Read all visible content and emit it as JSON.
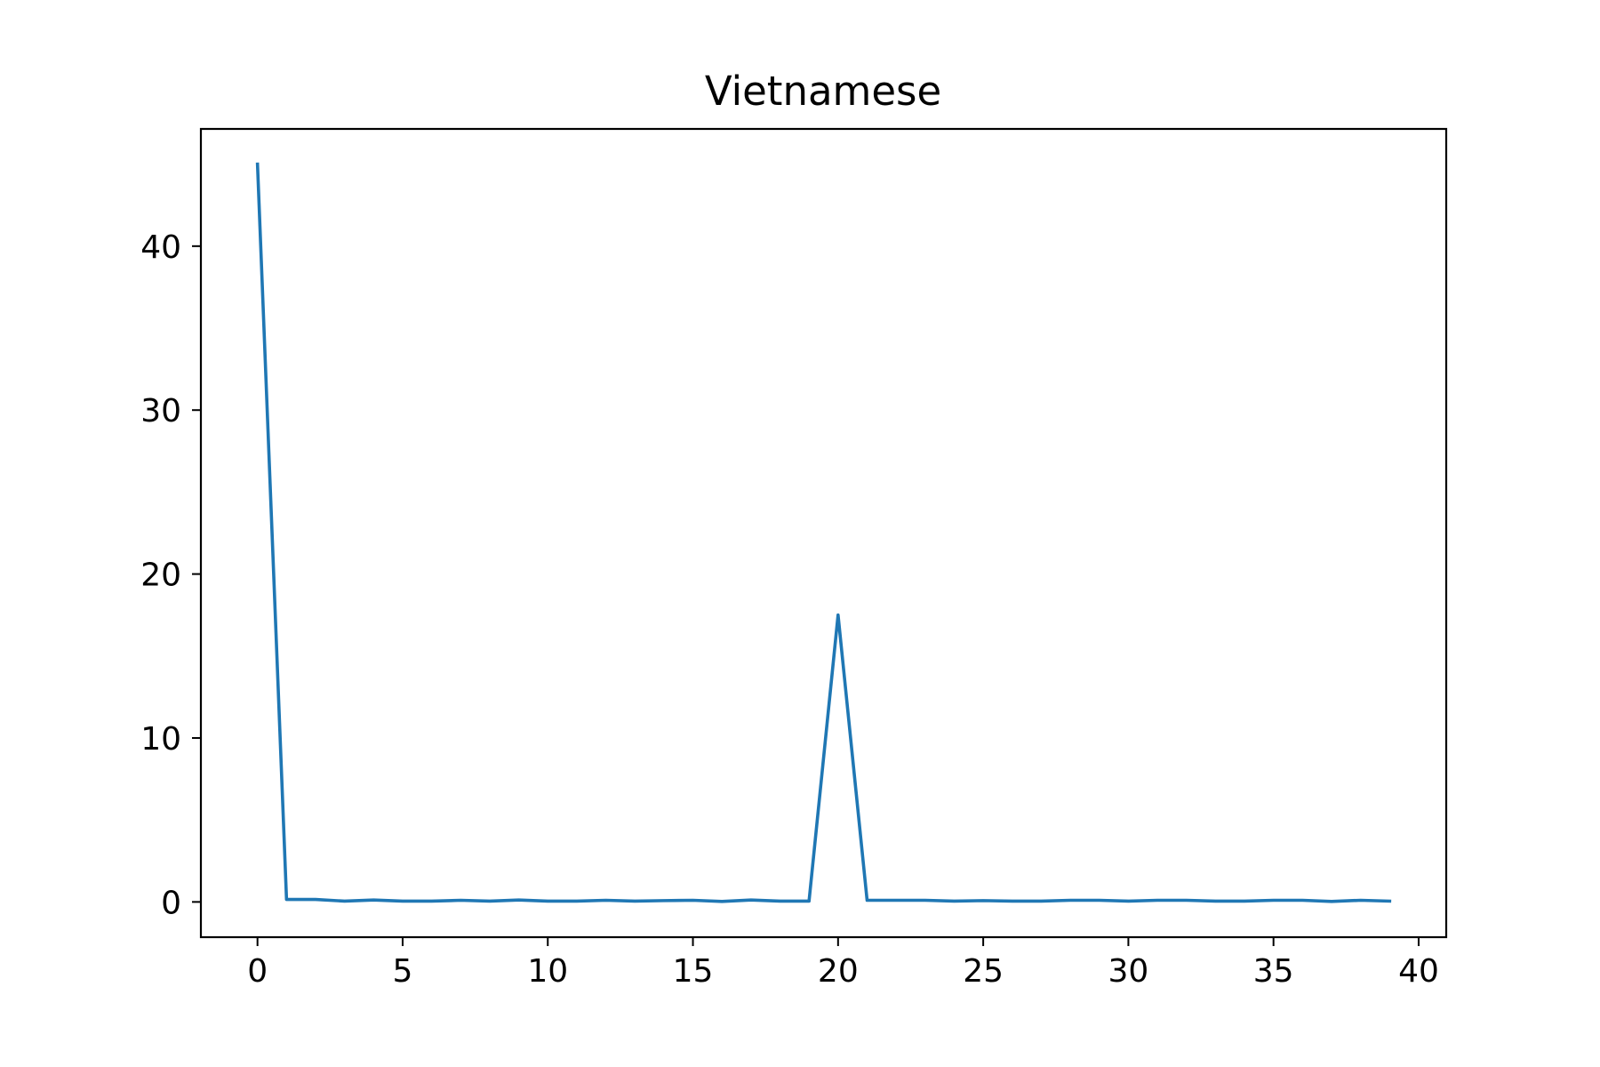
{
  "chart_data": {
    "type": "line",
    "title": "Vietnamese",
    "xlabel": "",
    "ylabel": "",
    "xlim": [
      -1.95,
      40.95
    ],
    "ylim": [
      -2.15,
      47.15
    ],
    "xticks": [
      0,
      5,
      10,
      15,
      20,
      25,
      30,
      35,
      40
    ],
    "yticks": [
      0,
      10,
      20,
      30,
      40
    ],
    "grid": false,
    "legend": null,
    "series": [
      {
        "color": "#1f77b4",
        "x": [
          0,
          1,
          2,
          3,
          4,
          5,
          6,
          7,
          8,
          9,
          10,
          11,
          12,
          13,
          14,
          15,
          16,
          17,
          18,
          19,
          20,
          21,
          22,
          23,
          24,
          25,
          26,
          27,
          28,
          29,
          30,
          31,
          32,
          33,
          34,
          35,
          36,
          37,
          38,
          39
        ],
        "values": [
          45.0,
          0.15,
          0.15,
          0.05,
          0.12,
          0.05,
          0.05,
          0.1,
          0.05,
          0.12,
          0.05,
          0.05,
          0.1,
          0.05,
          0.08,
          0.1,
          0.03,
          0.12,
          0.05,
          0.05,
          17.5,
          0.1,
          0.1,
          0.1,
          0.05,
          0.08,
          0.05,
          0.05,
          0.1,
          0.1,
          0.05,
          0.1,
          0.1,
          0.05,
          0.05,
          0.1,
          0.1,
          0.03,
          0.1,
          0.05
        ]
      }
    ]
  }
}
